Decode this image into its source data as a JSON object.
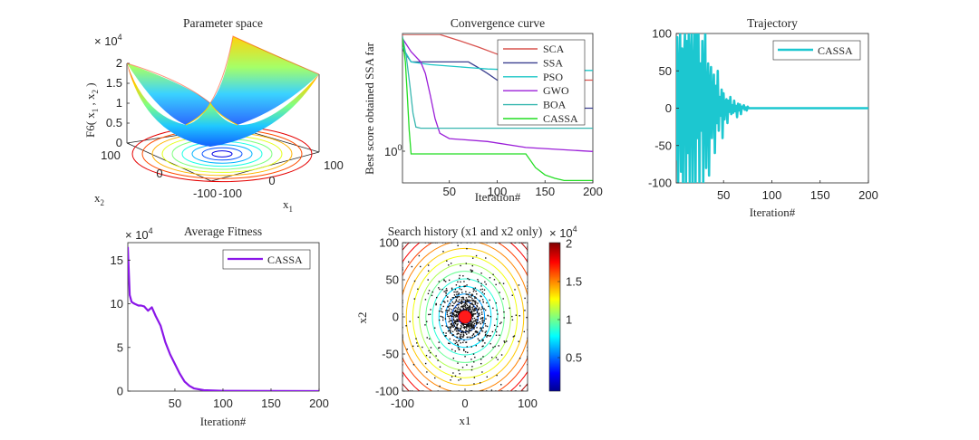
{
  "chart_data": [
    {
      "type": "surface",
      "title": "Parameter space",
      "zlabel_main": "F6( x",
      "zlabel_sub1": "1",
      "zlabel_mid": " , x",
      "zlabel_sub2": "2",
      "zlabel_end": " )",
      "xlabel_main": "x",
      "xlabel_sub": "1",
      "ylabel_main": "x",
      "ylabel_sub": "2",
      "exponent_base": "× 10",
      "exponent_power": "4",
      "zticks": [
        "0",
        "0.5",
        "1",
        "1.5",
        "2"
      ],
      "x1_ticks": [
        "-100",
        "0",
        "100"
      ],
      "x2_ticks": [
        "100",
        "0",
        "-100"
      ],
      "zlim": [
        0,
        2
      ],
      "colormap": "jet"
    },
    {
      "type": "line",
      "title": "Convergence curve",
      "xlabel": "Iteration#",
      "ylabel": "Best score obtained SSA far",
      "xlim": [
        1,
        200
      ],
      "yscale": "log",
      "xticks": [
        "50",
        "100",
        "150",
        "200"
      ],
      "ytick_label_base": "10",
      "ytick_label_power": "0",
      "legend_position": "top-right",
      "series": [
        {
          "name": "SCA",
          "color": "#d9534f",
          "points": [
            [
              1,
              4.2
            ],
            [
              40,
              4.2
            ],
            [
              60,
              3.9
            ],
            [
              80,
              3.6
            ],
            [
              100,
              3.3
            ],
            [
              120,
              3.0
            ],
            [
              140,
              2.7
            ],
            [
              150,
              2.4
            ],
            [
              200,
              2.4
            ]
          ]
        },
        {
          "name": "SSA",
          "color": "#3b3f8f",
          "points": [
            [
              1,
              3.5
            ],
            [
              10,
              3.0
            ],
            [
              20,
              3.0
            ],
            [
              70,
              3.0
            ],
            [
              80,
              2.8
            ],
            [
              90,
              2.6
            ],
            [
              100,
              2.4
            ],
            [
              150,
              2.4
            ],
            [
              151,
              1.7
            ],
            [
              200,
              1.7
            ]
          ]
        },
        {
          "name": "PSO",
          "color": "#1fc7c7",
          "points": [
            [
              1,
              3.6
            ],
            [
              10,
              3.0
            ],
            [
              30,
              2.9
            ],
            [
              70,
              2.8
            ],
            [
              90,
              2.75
            ],
            [
              130,
              2.7
            ],
            [
              200,
              2.7
            ]
          ]
        },
        {
          "name": "GWO",
          "color": "#9b1fd8",
          "points": [
            [
              1,
              4.0
            ],
            [
              10,
              3.4
            ],
            [
              20,
              3.0
            ],
            [
              25,
              2.6
            ],
            [
              30,
              2.0
            ],
            [
              35,
              1.5
            ],
            [
              40,
              1.25
            ],
            [
              50,
              1.17
            ],
            [
              90,
              1.13
            ],
            [
              130,
              1.05
            ],
            [
              200,
              1.0
            ]
          ]
        },
        {
          "name": "BOA",
          "color": "#38b7b0",
          "points": [
            [
              1,
              4.1
            ],
            [
              5,
              3.2
            ],
            [
              9,
              2.2
            ],
            [
              12,
              1.6
            ],
            [
              15,
              1.35
            ],
            [
              20,
              1.33
            ],
            [
              200,
              1.33
            ]
          ]
        },
        {
          "name": "CASSA",
          "color": "#22dd22",
          "points": [
            [
              1,
              4.0
            ],
            [
              4,
              3.0
            ],
            [
              6,
              2.0
            ],
            [
              8,
              1.3
            ],
            [
              10,
              0.97
            ],
            [
              130,
              0.97
            ],
            [
              140,
              0.82
            ],
            [
              150,
              0.75
            ],
            [
              160,
              0.72
            ],
            [
              170,
              0.7
            ],
            [
              200,
              0.7
            ]
          ]
        }
      ]
    },
    {
      "type": "line",
      "title": "Trajectory",
      "xlabel": "Iteration#",
      "xlim": [
        1,
        200
      ],
      "ylim": [
        -100,
        100
      ],
      "xticks": [
        "50",
        "100",
        "150",
        "200"
      ],
      "yticks": [
        "100",
        "50",
        "0",
        "-50",
        "-100"
      ],
      "legend_position": "top-right",
      "series": [
        {
          "name": "CASSA",
          "color": "#1cc7d0",
          "y": [
            -70,
            95,
            -100,
            40,
            100,
            -85,
            80,
            -100,
            60,
            100,
            -100,
            90,
            -60,
            100,
            -100,
            70,
            100,
            -100,
            50,
            100,
            -100,
            100,
            -40,
            100,
            -100,
            60,
            -30,
            90,
            -100,
            40,
            100,
            -80,
            20,
            60,
            -90,
            30,
            55,
            -40,
            10,
            45,
            -60,
            30,
            -20,
            50,
            -30,
            15,
            -10,
            25,
            -40,
            20,
            -15,
            8,
            12,
            -20,
            10,
            -5,
            15,
            -8,
            4,
            -6,
            10,
            -4,
            3,
            -12,
            6,
            -3,
            5,
            -8,
            2,
            0,
            4,
            -2,
            1,
            -3,
            2,
            0
          ]
        }
      ]
    },
    {
      "type": "line",
      "title": "Average Fitness",
      "xlabel": "Iteration#",
      "exponent_base": "× 10",
      "exponent_power": "4",
      "xlim": [
        1,
        200
      ],
      "ylim": [
        0,
        17
      ],
      "xticks": [
        "50",
        "100",
        "150",
        "200"
      ],
      "yticks": [
        "15",
        "10",
        "5",
        "0"
      ],
      "legend_position": "top-right",
      "series": [
        {
          "name": "CASSA",
          "color": "#8a16e8",
          "points": [
            [
              1,
              16.5
            ],
            [
              3,
              11
            ],
            [
              5,
              10.2
            ],
            [
              8,
              10
            ],
            [
              12,
              9.8
            ],
            [
              15,
              9.8
            ],
            [
              18,
              9.7
            ],
            [
              22,
              9.2
            ],
            [
              26,
              9.6
            ],
            [
              30,
              8.6
            ],
            [
              35,
              7.5
            ],
            [
              40,
              5.6
            ],
            [
              45,
              4.2
            ],
            [
              50,
              3.1
            ],
            [
              55,
              2.0
            ],
            [
              60,
              1.1
            ],
            [
              65,
              0.6
            ],
            [
              70,
              0.3
            ],
            [
              80,
              0.1
            ],
            [
              100,
              0.03
            ],
            [
              200,
              0
            ]
          ]
        }
      ]
    },
    {
      "type": "scatter",
      "title": "Search history (x1 and x2 only)",
      "xlabel": "x1",
      "ylabel": "x2",
      "xlim": [
        -100,
        100
      ],
      "ylim": [
        -100,
        100
      ],
      "xticks": [
        "-100",
        "0",
        "100"
      ],
      "yticks": [
        "100",
        "50",
        "0",
        "-50",
        "-100"
      ],
      "colorbar_ticks": [
        "2",
        "1.5",
        "1",
        "0.5"
      ],
      "colorbar_exponent_base": "× 10",
      "colorbar_exponent_power": "4",
      "colormap": "jet",
      "best_point": [
        0,
        0
      ]
    }
  ]
}
